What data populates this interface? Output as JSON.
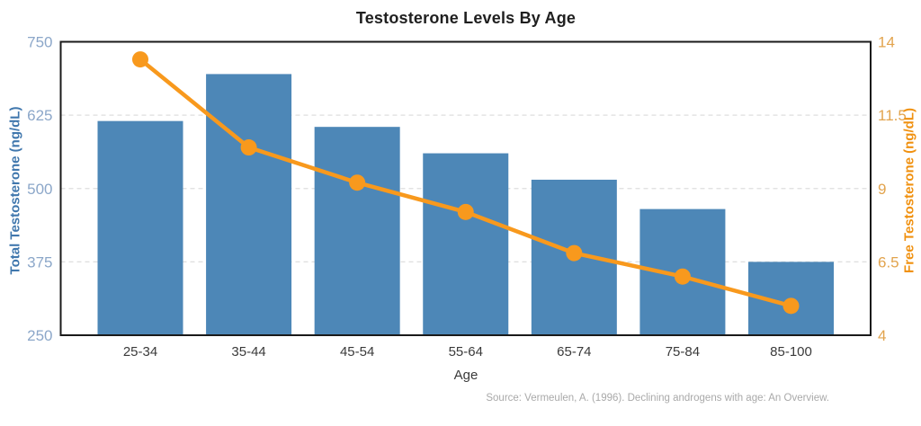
{
  "title": "Testosterone Levels By Age",
  "source_note": "Source: Vermeulen, A. (1996). Declining androgens with age: An Overview.",
  "chart_data": {
    "type": "bar+line combo",
    "title": "Testosterone Levels By Age",
    "xlabel": "Age",
    "categories": [
      "25-34",
      "35-44",
      "45-54",
      "55-64",
      "65-74",
      "75-84",
      "85-100"
    ],
    "series": [
      {
        "name": "Total Testosterone (ng/dL)",
        "type": "bar",
        "axis": "left",
        "color": "#4D87B7",
        "values": [
          615,
          695,
          605,
          560,
          515,
          465,
          375
        ]
      },
      {
        "name": "Free Testosterone (ng/dL)",
        "type": "line",
        "axis": "right",
        "color": "#F8991D",
        "values": [
          13.4,
          10.4,
          9.2,
          8.2,
          6.8,
          6.0,
          5.0
        ]
      }
    ],
    "left_axis": {
      "label": "Total Testosterone (ng/dL)",
      "ticks": [
        750,
        625,
        500,
        375,
        250
      ],
      "range": [
        250,
        750
      ],
      "tick_color": "#8CA7C9",
      "label_color": "#4077AD"
    },
    "right_axis": {
      "label": "Free Testosterone (ng/dL)",
      "ticks": [
        14,
        11.5,
        9,
        6.5,
        4
      ],
      "range": [
        4,
        14
      ],
      "tick_color": "#E2A44E",
      "label_color": "#F09110"
    },
    "grid": {
      "horizontal": true,
      "style": "dashed",
      "color": "#DEDEDE"
    },
    "legend": "none"
  },
  "styles": {
    "title_color": "#1F1F1F",
    "xtick_color": "#3A3A3A",
    "xlabel_color": "#3A3A3A",
    "source_color": "#A9A9A9",
    "border_color": "#1A1A1A",
    "background": "#FFFFFF"
  }
}
